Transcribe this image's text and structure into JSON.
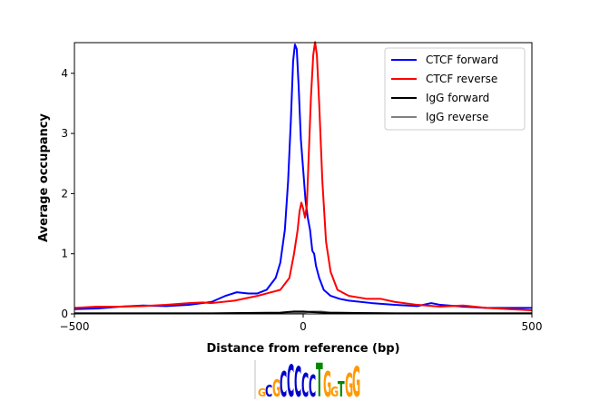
{
  "chart_data": {
    "type": "line",
    "title": "",
    "xlabel": "Distance from reference (bp)",
    "ylabel": "Average occupancy",
    "xlim": [
      -500,
      500
    ],
    "ylim": [
      0,
      4.5
    ],
    "xticks": [
      -500,
      0,
      500
    ],
    "yticks": [
      0,
      1,
      2,
      3,
      4
    ],
    "grid": false,
    "legend_position": "top-right",
    "series": [
      {
        "name": "CTCF forward",
        "color": "#0000ff",
        "x": [
          -500,
          -450,
          -400,
          -350,
          -300,
          -250,
          -200,
          -170,
          -145,
          -120,
          -100,
          -80,
          -60,
          -50,
          -40,
          -33,
          -27,
          -22,
          -18,
          -14,
          -10,
          -5,
          0,
          5,
          10,
          15,
          20,
          24,
          28,
          35,
          45,
          60,
          80,
          100,
          150,
          200,
          250,
          280,
          300,
          350,
          400,
          450,
          500
        ],
        "y": [
          0.08,
          0.09,
          0.12,
          0.14,
          0.13,
          0.15,
          0.2,
          0.3,
          0.36,
          0.34,
          0.34,
          0.4,
          0.6,
          0.85,
          1.4,
          2.2,
          3.2,
          4.2,
          4.48,
          4.4,
          3.8,
          2.9,
          2.4,
          1.9,
          1.6,
          1.4,
          1.05,
          1.0,
          0.8,
          0.6,
          0.4,
          0.3,
          0.25,
          0.22,
          0.18,
          0.15,
          0.13,
          0.18,
          0.15,
          0.12,
          0.1,
          0.1,
          0.1
        ]
      },
      {
        "name": "CTCF reverse",
        "color": "#ff0000",
        "x": [
          -500,
          -450,
          -400,
          -350,
          -300,
          -250,
          -220,
          -200,
          -150,
          -100,
          -75,
          -50,
          -30,
          -20,
          -12,
          -8,
          -4,
          0,
          4,
          8,
          12,
          17,
          22,
          26,
          30,
          35,
          42,
          50,
          60,
          75,
          100,
          140,
          170,
          200,
          250,
          300,
          350,
          400,
          450,
          500
        ],
        "y": [
          0.1,
          0.12,
          0.12,
          0.13,
          0.15,
          0.18,
          0.19,
          0.18,
          0.22,
          0.3,
          0.35,
          0.4,
          0.6,
          1.0,
          1.4,
          1.7,
          1.85,
          1.75,
          1.6,
          1.8,
          2.6,
          3.6,
          4.3,
          4.52,
          4.3,
          3.5,
          2.2,
          1.2,
          0.7,
          0.4,
          0.3,
          0.25,
          0.25,
          0.2,
          0.15,
          0.12,
          0.14,
          0.1,
          0.08,
          0.06
        ]
      },
      {
        "name": "IgG forward",
        "color": "#000000",
        "x": [
          -500,
          -200,
          -50,
          -20,
          0,
          20,
          50,
          200,
          500
        ],
        "y": [
          0.01,
          0.01,
          0.02,
          0.04,
          0.04,
          0.03,
          0.02,
          0.01,
          0.01
        ]
      },
      {
        "name": "IgG reverse",
        "color": "#808080",
        "x": [
          -500,
          -200,
          -50,
          0,
          20,
          40,
          60,
          200,
          500
        ],
        "y": [
          0.01,
          0.01,
          0.01,
          0.02,
          0.04,
          0.04,
          0.02,
          0.01,
          0.01
        ]
      }
    ],
    "motif_logo": "GCGCCCCCTGGTGG"
  }
}
